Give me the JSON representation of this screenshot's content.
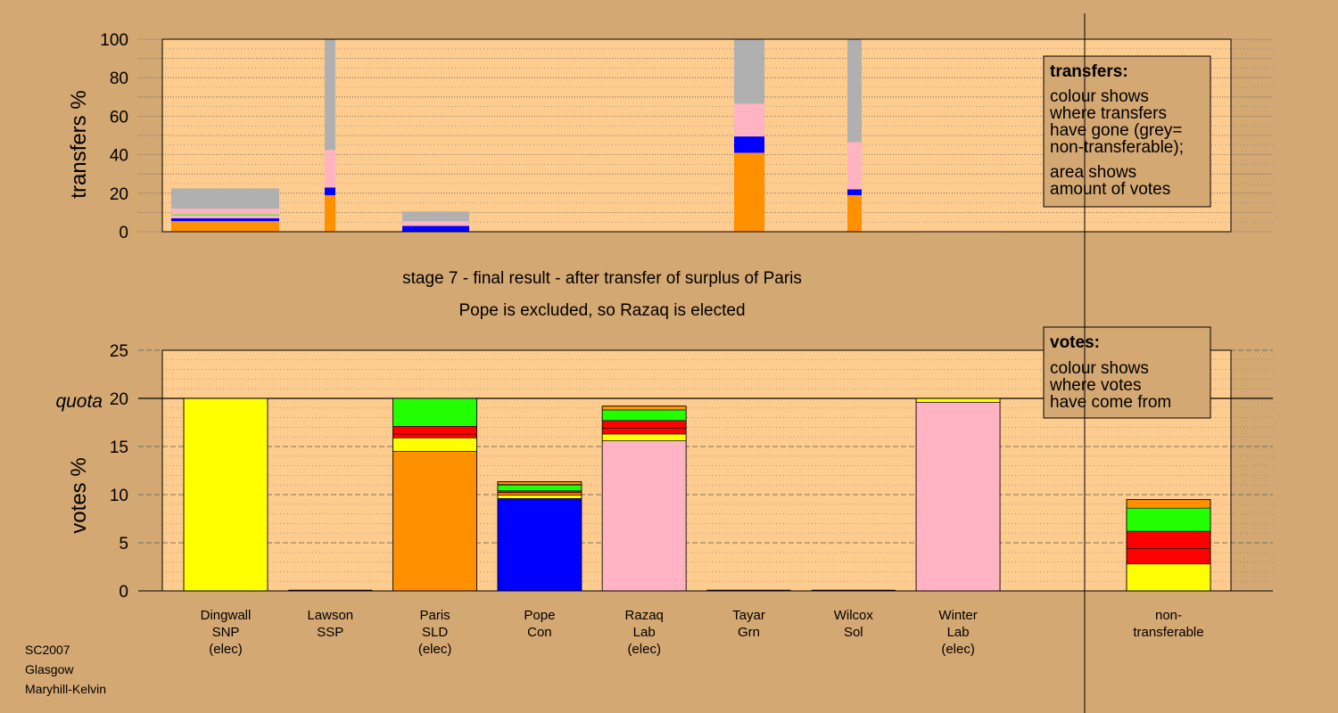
{
  "colors": {
    "background": "#d4a873",
    "plot": "#ffcc8f",
    "SNP": "#ffff00",
    "SSP": "#ff0000",
    "SLD": "#ff9000",
    "Con": "#0000ff",
    "Lab": "#ffb3c3",
    "Grn": "#22ff00",
    "Sol": "#ff0000",
    "nontransferable": "#b0b0b0"
  },
  "chart_data": [
    {
      "type": "bar",
      "stacked": true,
      "ylabel": "transfers %",
      "ylim": [
        0,
        100
      ],
      "yticks": [
        0,
        20,
        40,
        60,
        80,
        100
      ],
      "grid": true,
      "legend": {
        "placement": "top-right",
        "title": "transfers:",
        "lines1": [
          "colour shows",
          "where transfers",
          "have gone (grey=",
          "non-transferable);"
        ],
        "lines2": [
          "area shows",
          "amount of votes"
        ]
      },
      "bars": [
        {
          "candidate": "Dingwall",
          "width": "wide",
          "segments": [
            {
              "party": "SLD",
              "value": 5.5
            },
            {
              "party": "Con",
              "value": 1.5
            },
            {
              "party": "Lab",
              "value": 1.5
            },
            {
              "party": "Grn",
              "value": 0.5
            },
            {
              "party": "Lab",
              "value": 3
            },
            {
              "party": "nontransferable",
              "value": 10.5
            }
          ]
        },
        {
          "candidate": "Lawson",
          "width": "narrow",
          "segments": [
            {
              "party": "SLD",
              "value": 19
            },
            {
              "party": "Con",
              "value": 4
            },
            {
              "party": "Lab",
              "value": 19.5
            },
            {
              "party": "nontransferable",
              "value": 57.5
            }
          ]
        },
        {
          "candidate": "Paris",
          "width": "wide",
          "segments": [
            {
              "party": "Con",
              "value": 3
            },
            {
              "party": "Lab",
              "value": 2.5
            },
            {
              "party": "nontransferable",
              "value": 5
            }
          ]
        },
        {
          "candidate": "Tayar",
          "width": "narrow",
          "segments": [
            {
              "party": "SLD",
              "value": 41
            },
            {
              "party": "Con",
              "value": 8.5
            },
            {
              "party": "Lab",
              "value": 17
            },
            {
              "party": "nontransferable",
              "value": 33.5
            }
          ]
        },
        {
          "candidate": "Wilcox",
          "width": "narrow",
          "segments": [
            {
              "party": "SLD",
              "value": 19
            },
            {
              "party": "Con",
              "value": 3
            },
            {
              "party": "Lab",
              "value": 24.5
            },
            {
              "party": "nontransferable",
              "value": 53.5
            }
          ]
        }
      ]
    },
    {
      "type": "bar",
      "stacked": true,
      "ylabel": "votes %",
      "ylim": [
        0,
        25
      ],
      "yticks": [
        0,
        5,
        10,
        15,
        25
      ],
      "quota": {
        "value": 20,
        "label": "quota",
        "tick_label": "20"
      },
      "grid": true,
      "title_lines": [
        "stage 7 - final result - after transfer of surplus of Paris",
        "Pope is excluded, so Razaq is elected"
      ],
      "legend": {
        "placement": "top-right",
        "title": "votes:",
        "lines1": [
          "colour shows",
          "where votes",
          "have come from"
        ]
      },
      "candidates": [
        {
          "name": "Dingwall",
          "party_label": "SNP",
          "status": "(elec)",
          "segments": [
            {
              "party": "SNP",
              "value": 20
            }
          ]
        },
        {
          "name": "Lawson",
          "party_label": "SSP",
          "status": "",
          "segments": []
        },
        {
          "name": "Paris",
          "party_label": "SLD",
          "status": "(elec)",
          "segments": [
            {
              "party": "SLD",
              "value": 14.5
            },
            {
              "party": "SNP",
              "value": 1.4
            },
            {
              "party": "SSP",
              "value": 0.4
            },
            {
              "party": "Sol",
              "value": 0.8
            },
            {
              "party": "Grn",
              "value": 2.9
            }
          ]
        },
        {
          "name": "Pope",
          "party_label": "Con",
          "status": "",
          "segments": [
            {
              "party": "Con",
              "value": 9.6
            },
            {
              "party": "SNP",
              "value": 0.35
            },
            {
              "party": "SLD",
              "value": 0.25
            },
            {
              "party": "SSP",
              "value": 0.2
            },
            {
              "party": "Grn",
              "value": 0.6
            },
            {
              "party": "Sol",
              "value": 0.05
            },
            {
              "party": "SLD",
              "value": 0.3
            }
          ]
        },
        {
          "name": "Razaq",
          "party_label": "Lab",
          "status": "(elec)",
          "segments": [
            {
              "party": "Lab",
              "value": 15.6
            },
            {
              "party": "SNP",
              "value": 0.7
            },
            {
              "party": "SSP",
              "value": 0.6
            },
            {
              "party": "Sol",
              "value": 0.8
            },
            {
              "party": "Grn",
              "value": 1.1
            },
            {
              "party": "SLD",
              "value": 0.4
            }
          ]
        },
        {
          "name": "Tayar",
          "party_label": "Grn",
          "status": "",
          "segments": []
        },
        {
          "name": "Wilcox",
          "party_label": "Sol",
          "status": "",
          "segments": []
        },
        {
          "name": "Winter",
          "party_label": "Lab",
          "status": "(elec)",
          "segments": [
            {
              "party": "Lab",
              "value": 19.6
            },
            {
              "party": "SNP",
              "value": 0.4
            }
          ]
        }
      ],
      "nontransferable": {
        "label_lines": [
          "non-",
          "transferable"
        ],
        "segments": [
          {
            "party": "SNP",
            "value": 2.8
          },
          {
            "party": "SSP",
            "value": 1.6
          },
          {
            "party": "Sol",
            "value": 1.8
          },
          {
            "party": "Grn",
            "value": 2.4
          },
          {
            "party": "SLD",
            "value": 0.9
          }
        ]
      }
    }
  ],
  "footer": {
    "lines": [
      "SC2007",
      "Glasgow",
      "Maryhill-Kelvin"
    ]
  }
}
